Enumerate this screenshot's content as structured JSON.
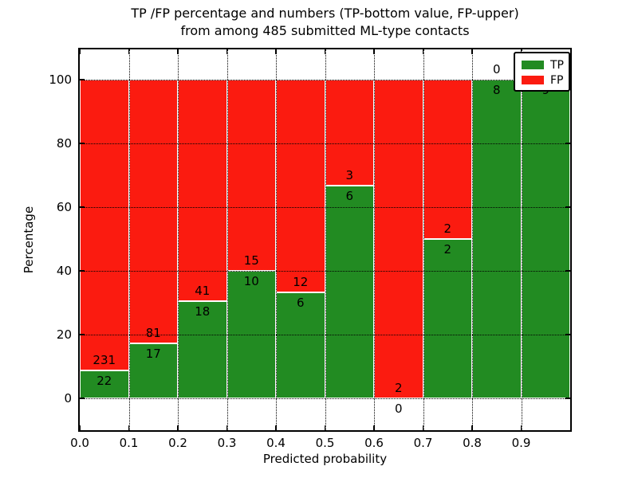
{
  "title": {
    "line1": "TP /FP percentage and numbers (TP-bottom value, FP-upper)",
    "line2": "from among 485 submitted ML-type contacts"
  },
  "x_axis": {
    "label": "Predicted probability",
    "ticks": [
      "0.0",
      "0.1",
      "0.2",
      "0.3",
      "0.4",
      "0.5",
      "0.6",
      "0.7",
      "0.8",
      "0.9"
    ]
  },
  "y_axis": {
    "label": "Percentage",
    "ticks": [
      "0",
      "20",
      "40",
      "60",
      "80",
      "100"
    ]
  },
  "legend": {
    "items": [
      {
        "label": "TP",
        "color": "#228b22"
      },
      {
        "label": "FP",
        "color": "#fb1b10"
      }
    ]
  },
  "colors": {
    "tp": "#228b22",
    "fp": "#fb1b10",
    "grid": "#000000",
    "background": "#ffffff",
    "text": "#000000"
  },
  "chart_data": {
    "type": "bar",
    "stacked": true,
    "normalized": "each bar totals 100% of bin contacts",
    "title": "TP /FP percentage and numbers (TP-bottom value, FP-upper) from among 485 submitted ML-type contacts",
    "xlabel": "Predicted probability",
    "ylabel": "Percentage",
    "xlim": [
      0.0,
      1.0
    ],
    "ylim": [
      -10,
      110
    ],
    "grid": "dotted",
    "legend_position": "upper right",
    "bin_width": 0.1,
    "total_contacts": 485,
    "series_names": [
      "TP",
      "FP"
    ],
    "bins": [
      {
        "x_start": 0.0,
        "x_end": 0.1,
        "tp": 22,
        "fp": 231,
        "tp_percent": 8.7
      },
      {
        "x_start": 0.1,
        "x_end": 0.2,
        "tp": 17,
        "fp": 81,
        "tp_percent": 17.35
      },
      {
        "x_start": 0.2,
        "x_end": 0.3,
        "tp": 18,
        "fp": 41,
        "tp_percent": 30.51
      },
      {
        "x_start": 0.3,
        "x_end": 0.4,
        "tp": 10,
        "fp": 15,
        "tp_percent": 40.0
      },
      {
        "x_start": 0.4,
        "x_end": 0.5,
        "tp": 6,
        "fp": 12,
        "tp_percent": 33.33
      },
      {
        "x_start": 0.5,
        "x_end": 0.6,
        "tp": 6,
        "fp": 3,
        "tp_percent": 66.67
      },
      {
        "x_start": 0.6,
        "x_end": 0.7,
        "tp": 0,
        "fp": 2,
        "tp_percent": 0.0
      },
      {
        "x_start": 0.7,
        "x_end": 0.8,
        "tp": 2,
        "fp": 2,
        "tp_percent": 50.0
      },
      {
        "x_start": 0.8,
        "x_end": 0.9,
        "tp": 8,
        "fp": 0,
        "tp_percent": 100.0
      },
      {
        "x_start": 0.9,
        "x_end": 1.0,
        "tp": 9,
        "fp": 0,
        "tp_percent": 100.0
      }
    ]
  }
}
